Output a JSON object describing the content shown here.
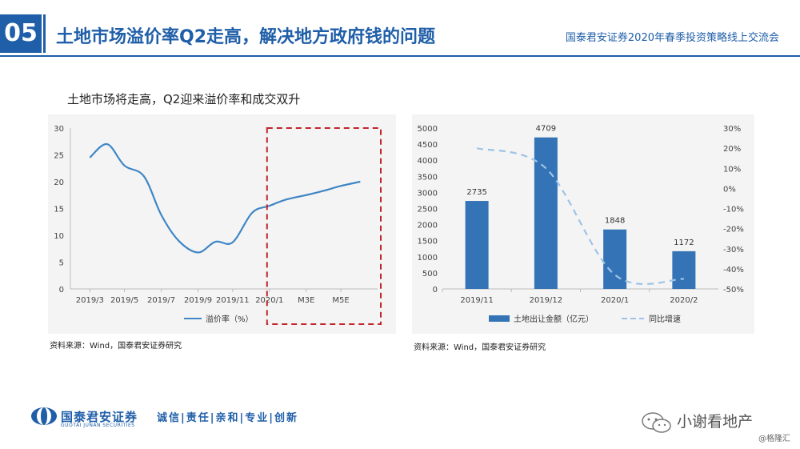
{
  "header": {
    "section_number": "05",
    "title": "土地市场溢价率Q2走高，解决地方政府钱的问题",
    "event": "国泰君安证券2020年春季投资策略线上交流会"
  },
  "subtitle": "土地市场将走高，Q2迎来溢价率和成交双升",
  "colors": {
    "brand_blue": "#1f5ea8",
    "line_blue": "#3f86c6",
    "bar_blue": "#3474b6",
    "dash_light_blue": "#9ec3e6",
    "highlight_red": "#c0262c"
  },
  "chart_data": [
    {
      "type": "line",
      "x_ticks": [
        "2019/3",
        "2019/5",
        "2019/7",
        "2019/9",
        "2019/11",
        "2020/1",
        "M3E",
        "M5E"
      ],
      "y_ticks": [
        "0",
        "5",
        "10",
        "15",
        "20",
        "25",
        "30"
      ],
      "ylim": [
        0,
        30
      ],
      "series": [
        {
          "name": "溢价率（%）",
          "x": [
            2019.17,
            2019.25,
            2019.33,
            2019.42,
            2019.5,
            2019.58,
            2019.67,
            2019.75,
            2019.83,
            2019.92,
            2020.0,
            2020.08,
            2020.17,
            2020.25,
            2020.33,
            2020.42
          ],
          "y": [
            24.5,
            27,
            23,
            21,
            13.8,
            9,
            6.8,
            8.8,
            8.7,
            14.2,
            15.5,
            16.7,
            17.5,
            18.3,
            19.2,
            20
          ]
        }
      ],
      "highlight": "dashed box over 2020/1 – M5E",
      "legend": "bottom"
    },
    {
      "type": "bar",
      "categories": [
        "2019/11",
        "2019/12",
        "2020/1",
        "2020/2"
      ],
      "y_ticks_left": [
        "0",
        "500",
        "1000",
        "1500",
        "2000",
        "2500",
        "3000",
        "3500",
        "4000",
        "4500",
        "5000"
      ],
      "y_ticks_right": [
        "-50%",
        "-40%",
        "-30%",
        "-20%",
        "-10%",
        "0%",
        "10%",
        "20%",
        "30%"
      ],
      "ylim_left": [
        0,
        5000
      ],
      "ylim_right": [
        -50,
        30
      ],
      "series": [
        {
          "name": "土地出让金额（亿元）",
          "axis": "left",
          "values": [
            2735,
            4709,
            1848,
            1172
          ],
          "labels": [
            "2735",
            "4709",
            "1848",
            "1172"
          ]
        },
        {
          "name": "同比增速",
          "axis": "right",
          "type": "line",
          "values": [
            20,
            10,
            -43,
            -45
          ]
        }
      ],
      "legend": "bottom"
    }
  ],
  "sources": {
    "left": "资料来源：Wind，国泰君安证券研究",
    "right": "资料来源：Wind，国泰君安证券研究"
  },
  "footer": {
    "brand": "国泰君安证券",
    "brand_en": "GUOTAI JUNAN SECURITIES",
    "slogan": "诚信|责任|亲和|专业|创新"
  },
  "watermark": {
    "text": "小谢看地产",
    "credit": "@格隆汇"
  }
}
